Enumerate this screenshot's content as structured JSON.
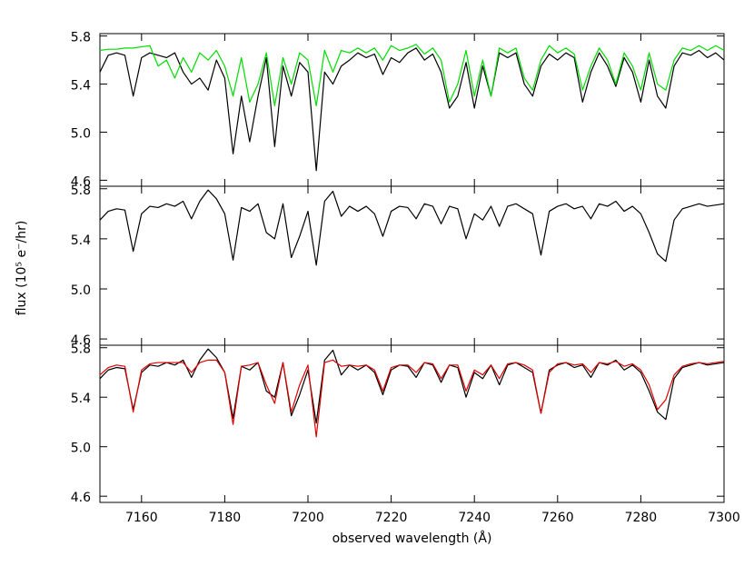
{
  "chart_data": [
    {
      "type": "line",
      "xlim": [
        7150,
        7300
      ],
      "ylim": [
        4.55,
        5.82
      ],
      "yticks": [
        4.6,
        {
          "value": 5,
          "label": "5.0"
        },
        5.4,
        5.8
      ],
      "x": [
        7150,
        7152,
        7154,
        7156,
        7158,
        7160,
        7162,
        7164,
        7166,
        7168,
        7170,
        7172,
        7174,
        7176,
        7178,
        7180,
        7182,
        7184,
        7186,
        7188,
        7190,
        7192,
        7194,
        7196,
        7198,
        7200,
        7202,
        7204,
        7206,
        7208,
        7210,
        7212,
        7214,
        7216,
        7218,
        7220,
        7222,
        7224,
        7226,
        7228,
        7230,
        7232,
        7234,
        7236,
        7238,
        7240,
        7242,
        7244,
        7246,
        7248,
        7250,
        7252,
        7254,
        7256,
        7258,
        7260,
        7262,
        7264,
        7266,
        7268,
        7270,
        7272,
        7274,
        7276,
        7278,
        7280,
        7282,
        7284,
        7286,
        7288,
        7290,
        7292,
        7294,
        7296,
        7298,
        7300
      ],
      "series": [
        {
          "color": "#000000",
          "values": [
            5.5,
            5.64,
            5.66,
            5.64,
            5.3,
            5.62,
            5.66,
            5.64,
            5.62,
            5.66,
            5.5,
            5.4,
            5.45,
            5.35,
            5.6,
            5.45,
            4.82,
            5.3,
            4.92,
            5.3,
            5.62,
            4.88,
            5.55,
            5.3,
            5.58,
            5.5,
            4.68,
            5.5,
            5.4,
            5.55,
            5.6,
            5.66,
            5.62,
            5.65,
            5.48,
            5.62,
            5.58,
            5.66,
            5.7,
            5.6,
            5.65,
            5.5,
            5.2,
            5.3,
            5.58,
            5.2,
            5.55,
            5.3,
            5.66,
            5.62,
            5.66,
            5.4,
            5.3,
            5.55,
            5.65,
            5.6,
            5.66,
            5.62,
            5.25,
            5.5,
            5.66,
            5.55,
            5.38,
            5.62,
            5.5,
            5.25,
            5.6,
            5.3,
            5.2,
            5.55,
            5.66,
            5.64,
            5.68,
            5.62,
            5.66,
            5.6
          ]
        },
        {
          "color": "#00dd00",
          "values": [
            5.68,
            5.69,
            5.69,
            5.7,
            5.7,
            5.71,
            5.72,
            5.55,
            5.6,
            5.45,
            5.62,
            5.5,
            5.66,
            5.6,
            5.68,
            5.55,
            5.3,
            5.62,
            5.25,
            5.4,
            5.66,
            5.22,
            5.62,
            5.4,
            5.66,
            5.6,
            5.22,
            5.68,
            5.5,
            5.68,
            5.66,
            5.7,
            5.66,
            5.7,
            5.6,
            5.72,
            5.68,
            5.7,
            5.73,
            5.65,
            5.7,
            5.6,
            5.25,
            5.4,
            5.68,
            5.3,
            5.6,
            5.3,
            5.7,
            5.66,
            5.7,
            5.45,
            5.35,
            5.6,
            5.72,
            5.66,
            5.7,
            5.65,
            5.35,
            5.55,
            5.7,
            5.6,
            5.4,
            5.66,
            5.55,
            5.35,
            5.66,
            5.4,
            5.35,
            5.6,
            5.7,
            5.68,
            5.72,
            5.68,
            5.72,
            5.68
          ]
        }
      ]
    },
    {
      "type": "line",
      "xlim": [
        7150,
        7300
      ],
      "ylim": [
        4.55,
        5.82
      ],
      "ylabel": "flux (10⁵ e⁻/hr)",
      "yticks": [
        4.6,
        {
          "value": 5,
          "label": "5.0"
        },
        5.4,
        5.8
      ],
      "x": [
        7150,
        7152,
        7154,
        7156,
        7158,
        7160,
        7162,
        7164,
        7166,
        7168,
        7170,
        7172,
        7174,
        7176,
        7178,
        7180,
        7182,
        7184,
        7186,
        7188,
        7190,
        7192,
        7194,
        7196,
        7198,
        7200,
        7202,
        7204,
        7206,
        7208,
        7210,
        7212,
        7214,
        7216,
        7218,
        7220,
        7222,
        7224,
        7226,
        7228,
        7230,
        7232,
        7234,
        7236,
        7238,
        7240,
        7242,
        7244,
        7246,
        7248,
        7250,
        7252,
        7254,
        7256,
        7258,
        7260,
        7262,
        7264,
        7266,
        7268,
        7270,
        7272,
        7274,
        7276,
        7278,
        7280,
        7282,
        7284,
        7286,
        7288,
        7290,
        7292,
        7294,
        7296,
        7298,
        7300
      ],
      "series": [
        {
          "color": "#000000",
          "values": [
            5.55,
            5.62,
            5.64,
            5.63,
            5.3,
            5.6,
            5.66,
            5.65,
            5.68,
            5.66,
            5.7,
            5.56,
            5.7,
            5.79,
            5.72,
            5.6,
            5.23,
            5.65,
            5.62,
            5.68,
            5.45,
            5.4,
            5.68,
            5.25,
            5.42,
            5.62,
            5.19,
            5.7,
            5.78,
            5.58,
            5.66,
            5.62,
            5.66,
            5.6,
            5.42,
            5.62,
            5.66,
            5.65,
            5.56,
            5.68,
            5.66,
            5.52,
            5.66,
            5.64,
            5.4,
            5.6,
            5.55,
            5.66,
            5.5,
            5.66,
            5.68,
            5.64,
            5.6,
            5.27,
            5.62,
            5.66,
            5.68,
            5.64,
            5.66,
            5.56,
            5.68,
            5.66,
            5.7,
            5.62,
            5.66,
            5.6,
            5.45,
            5.28,
            5.22,
            5.55,
            5.64,
            5.66,
            5.68,
            5.66,
            5.67,
            5.68
          ]
        }
      ]
    },
    {
      "type": "line",
      "xlim": [
        7150,
        7300
      ],
      "ylim": [
        4.55,
        5.82
      ],
      "xlabel": "observed wavelength (Å)",
      "xticks": [
        7160,
        7180,
        7200,
        7220,
        7240,
        7260,
        7280,
        7300
      ],
      "yticks": [
        4.6,
        {
          "value": 5,
          "label": "5.0"
        },
        5.4,
        5.8
      ],
      "x": [
        7150,
        7152,
        7154,
        7156,
        7158,
        7160,
        7162,
        7164,
        7166,
        7168,
        7170,
        7172,
        7174,
        7176,
        7178,
        7180,
        7182,
        7184,
        7186,
        7188,
        7190,
        7192,
        7194,
        7196,
        7198,
        7200,
        7202,
        7204,
        7206,
        7208,
        7210,
        7212,
        7214,
        7216,
        7218,
        7220,
        7222,
        7224,
        7226,
        7228,
        7230,
        7232,
        7234,
        7236,
        7238,
        7240,
        7242,
        7244,
        7246,
        7248,
        7250,
        7252,
        7254,
        7256,
        7258,
        7260,
        7262,
        7264,
        7266,
        7268,
        7270,
        7272,
        7274,
        7276,
        7278,
        7280,
        7282,
        7284,
        7286,
        7288,
        7290,
        7292,
        7294,
        7296,
        7298,
        7300
      ],
      "series": [
        {
          "color": "#000000",
          "values": [
            5.55,
            5.62,
            5.64,
            5.63,
            5.3,
            5.6,
            5.66,
            5.65,
            5.68,
            5.66,
            5.7,
            5.56,
            5.7,
            5.79,
            5.72,
            5.6,
            5.23,
            5.65,
            5.62,
            5.68,
            5.45,
            5.4,
            5.68,
            5.25,
            5.42,
            5.62,
            5.19,
            5.7,
            5.78,
            5.58,
            5.66,
            5.62,
            5.66,
            5.6,
            5.42,
            5.62,
            5.66,
            5.65,
            5.56,
            5.68,
            5.66,
            5.52,
            5.66,
            5.64,
            5.4,
            5.6,
            5.55,
            5.66,
            5.5,
            5.66,
            5.68,
            5.64,
            5.6,
            5.27,
            5.62,
            5.66,
            5.68,
            5.64,
            5.66,
            5.56,
            5.68,
            5.66,
            5.7,
            5.62,
            5.66,
            5.6,
            5.45,
            5.28,
            5.22,
            5.55,
            5.64,
            5.66,
            5.68,
            5.66,
            5.67,
            5.68
          ]
        },
        {
          "color": "#e00000",
          "values": [
            5.58,
            5.64,
            5.66,
            5.65,
            5.28,
            5.62,
            5.67,
            5.68,
            5.68,
            5.68,
            5.68,
            5.6,
            5.68,
            5.7,
            5.7,
            5.6,
            5.18,
            5.65,
            5.66,
            5.68,
            5.5,
            5.35,
            5.68,
            5.28,
            5.5,
            5.66,
            5.08,
            5.68,
            5.7,
            5.65,
            5.66,
            5.65,
            5.66,
            5.62,
            5.45,
            5.64,
            5.66,
            5.66,
            5.6,
            5.68,
            5.67,
            5.55,
            5.66,
            5.66,
            5.45,
            5.62,
            5.58,
            5.66,
            5.55,
            5.67,
            5.68,
            5.66,
            5.62,
            5.27,
            5.6,
            5.67,
            5.68,
            5.66,
            5.67,
            5.6,
            5.68,
            5.67,
            5.69,
            5.65,
            5.67,
            5.62,
            5.5,
            5.3,
            5.38,
            5.58,
            5.65,
            5.67,
            5.68,
            5.67,
            5.68,
            5.69
          ]
        }
      ]
    }
  ]
}
